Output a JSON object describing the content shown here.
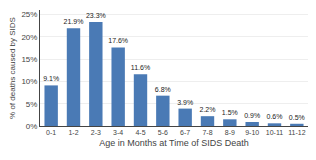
{
  "chart_data": {
    "type": "bar",
    "categories": [
      "0-1",
      "1-2",
      "2-3",
      "3-4",
      "4-5",
      "5-6",
      "6-7",
      "7-8",
      "8-9",
      "9-10",
      "10-11",
      "11-12"
    ],
    "values": [
      9.1,
      21.9,
      23.3,
      17.6,
      11.6,
      6.8,
      3.9,
      2.2,
      1.5,
      0.9,
      0.6,
      0.5
    ],
    "value_labels": [
      "9.1%",
      "21.9%",
      "23.3%",
      "17.6%",
      "11.6%",
      "6.8%",
      "3.9%",
      "2.2%",
      "1.5%",
      "0.9%",
      "0.6%",
      "0.5%"
    ],
    "data_labels": true,
    "color": "#4a7ab5",
    "xlabel": "Age in Months at Time of SIDS Death",
    "ylabel": "% of deaths caused by SIDS",
    "ylim": [
      0,
      26
    ],
    "yticks": [
      {
        "value": 0,
        "label": "0%"
      },
      {
        "value": 5,
        "label": "5%"
      },
      {
        "value": 10,
        "label": "10%"
      },
      {
        "value": 15,
        "label": "15%"
      },
      {
        "value": 20,
        "label": "20%"
      },
      {
        "value": 25,
        "label": "25%"
      }
    ],
    "grid": true
  }
}
